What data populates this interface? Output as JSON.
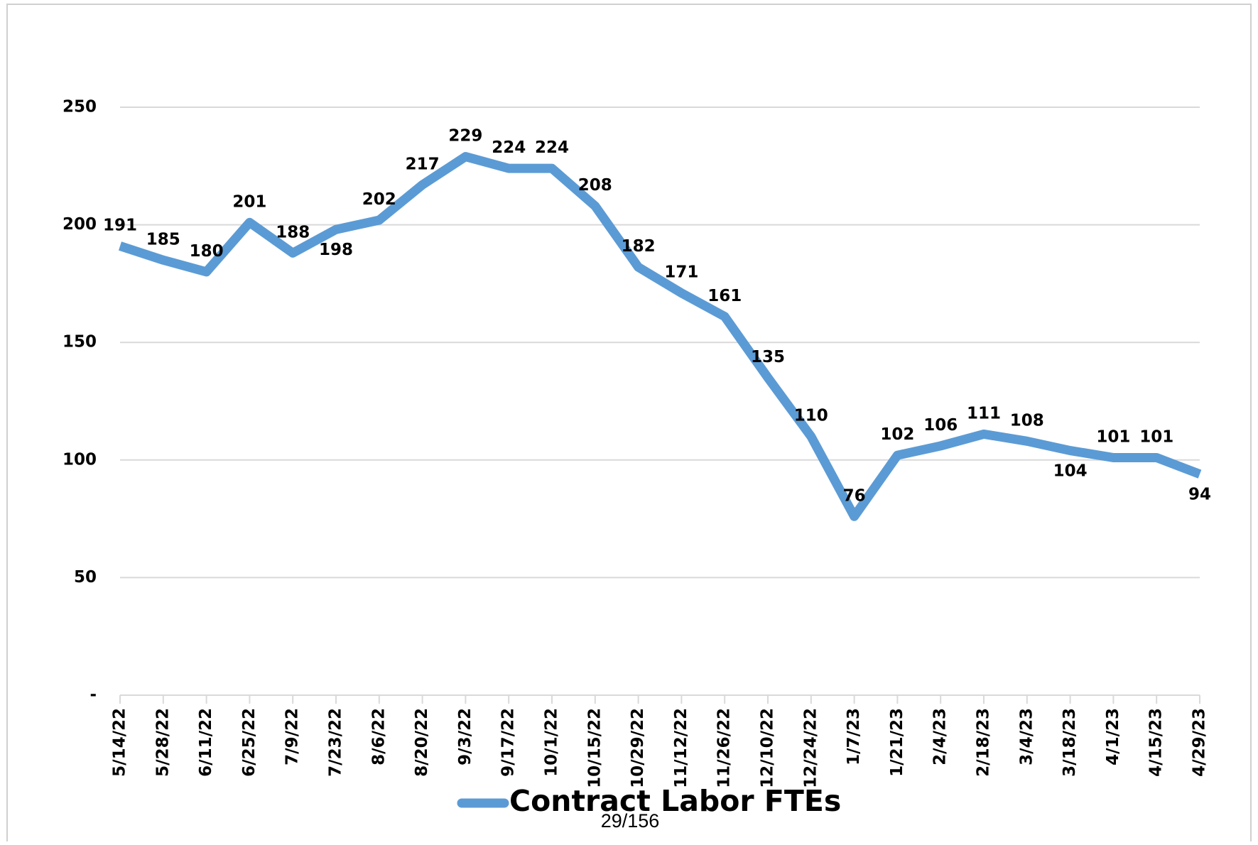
{
  "chart_data": {
    "type": "line",
    "categories": [
      "5/14/22",
      "5/28/22",
      "6/11/22",
      "6/25/22",
      "7/9/22",
      "7/23/22",
      "8/6/22",
      "8/20/22",
      "9/3/22",
      "9/17/22",
      "10/1/22",
      "10/15/22",
      "10/29/22",
      "11/12/22",
      "11/26/22",
      "12/10/22",
      "12/24/22",
      "1/7/23",
      "1/21/23",
      "2/4/23",
      "2/18/23",
      "3/4/23",
      "3/18/23",
      "4/1/23",
      "4/15/23",
      "4/29/23"
    ],
    "series": [
      {
        "name": "Contract Labor FTEs",
        "color": "#5b9bd5",
        "values": [
          191,
          185,
          180,
          201,
          188,
          198,
          202,
          217,
          229,
          224,
          224,
          208,
          182,
          171,
          161,
          135,
          110,
          76,
          102,
          106,
          111,
          108,
          104,
          101,
          101,
          94
        ]
      }
    ],
    "ylim": [
      0,
      250
    ],
    "yticks": [
      {
        "value": 0,
        "label": "-"
      },
      50,
      100,
      150,
      200,
      250
    ],
    "grid": true,
    "legend": "bottom"
  },
  "footer": "29/156"
}
